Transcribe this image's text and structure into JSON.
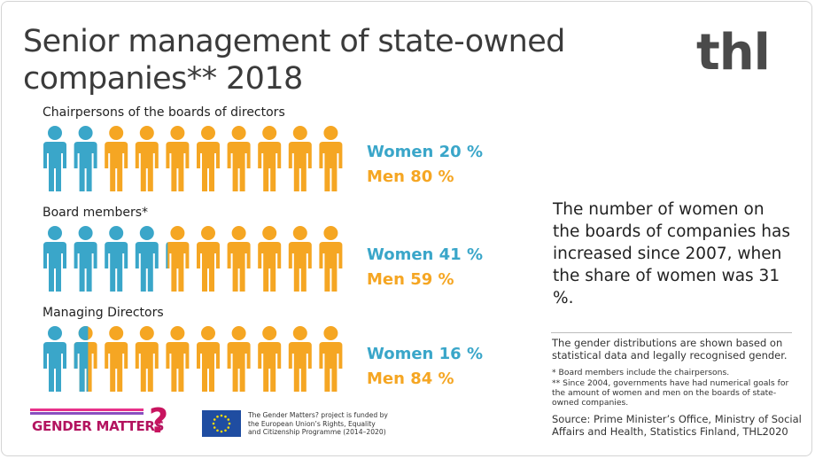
{
  "title": {
    "line1": "Senior management of state-owned",
    "line2": "companies** 2018"
  },
  "logo": "thl",
  "colors": {
    "women": "#3aa6c9",
    "men": "#f5a623"
  },
  "chart_data": {
    "type": "pictogram",
    "unit": "%",
    "icons_per_group": 10,
    "groups": [
      {
        "label": "Chairpersons of the boards of directors",
        "women": 20,
        "men": 80,
        "women_label": "Women 20 %",
        "men_label": "Men 80 %"
      },
      {
        "label": "Board members*",
        "women": 41,
        "men": 59,
        "women_label": "Women 41 %",
        "men_label": "Men 59 %"
      },
      {
        "label": "Managing Directors",
        "women": 16,
        "men": 84,
        "women_label": "Women 16 %",
        "men_label": "Men 84 %"
      }
    ]
  },
  "highlight": "The number of women on the boards of companies has increased since 2007, when the share of women was 31 %.",
  "notes": {
    "distribution": "The gender distributions are shown based on statistical data and legally recognised gender.",
    "board_members": "* Board members include the chairpersons.",
    "since_2004": "** Since 2004, governments have had numerical goals for the amount of women and men on the boards of state-owned companies.",
    "source": "Source:  Prime Minister’s Office, Ministry of Social Affairs and Health, Statistics Finland, THL2020"
  },
  "footer": {
    "gender_matters_logo": "GENDER MATTERS",
    "gender_matters_mark": "?",
    "eu_flag_icon": "eu-flag-icon",
    "eu_text": "The Gender Matters? project is funded by the European Union’s Rights, Equality and Citizenship Programme (2014–2020)"
  }
}
